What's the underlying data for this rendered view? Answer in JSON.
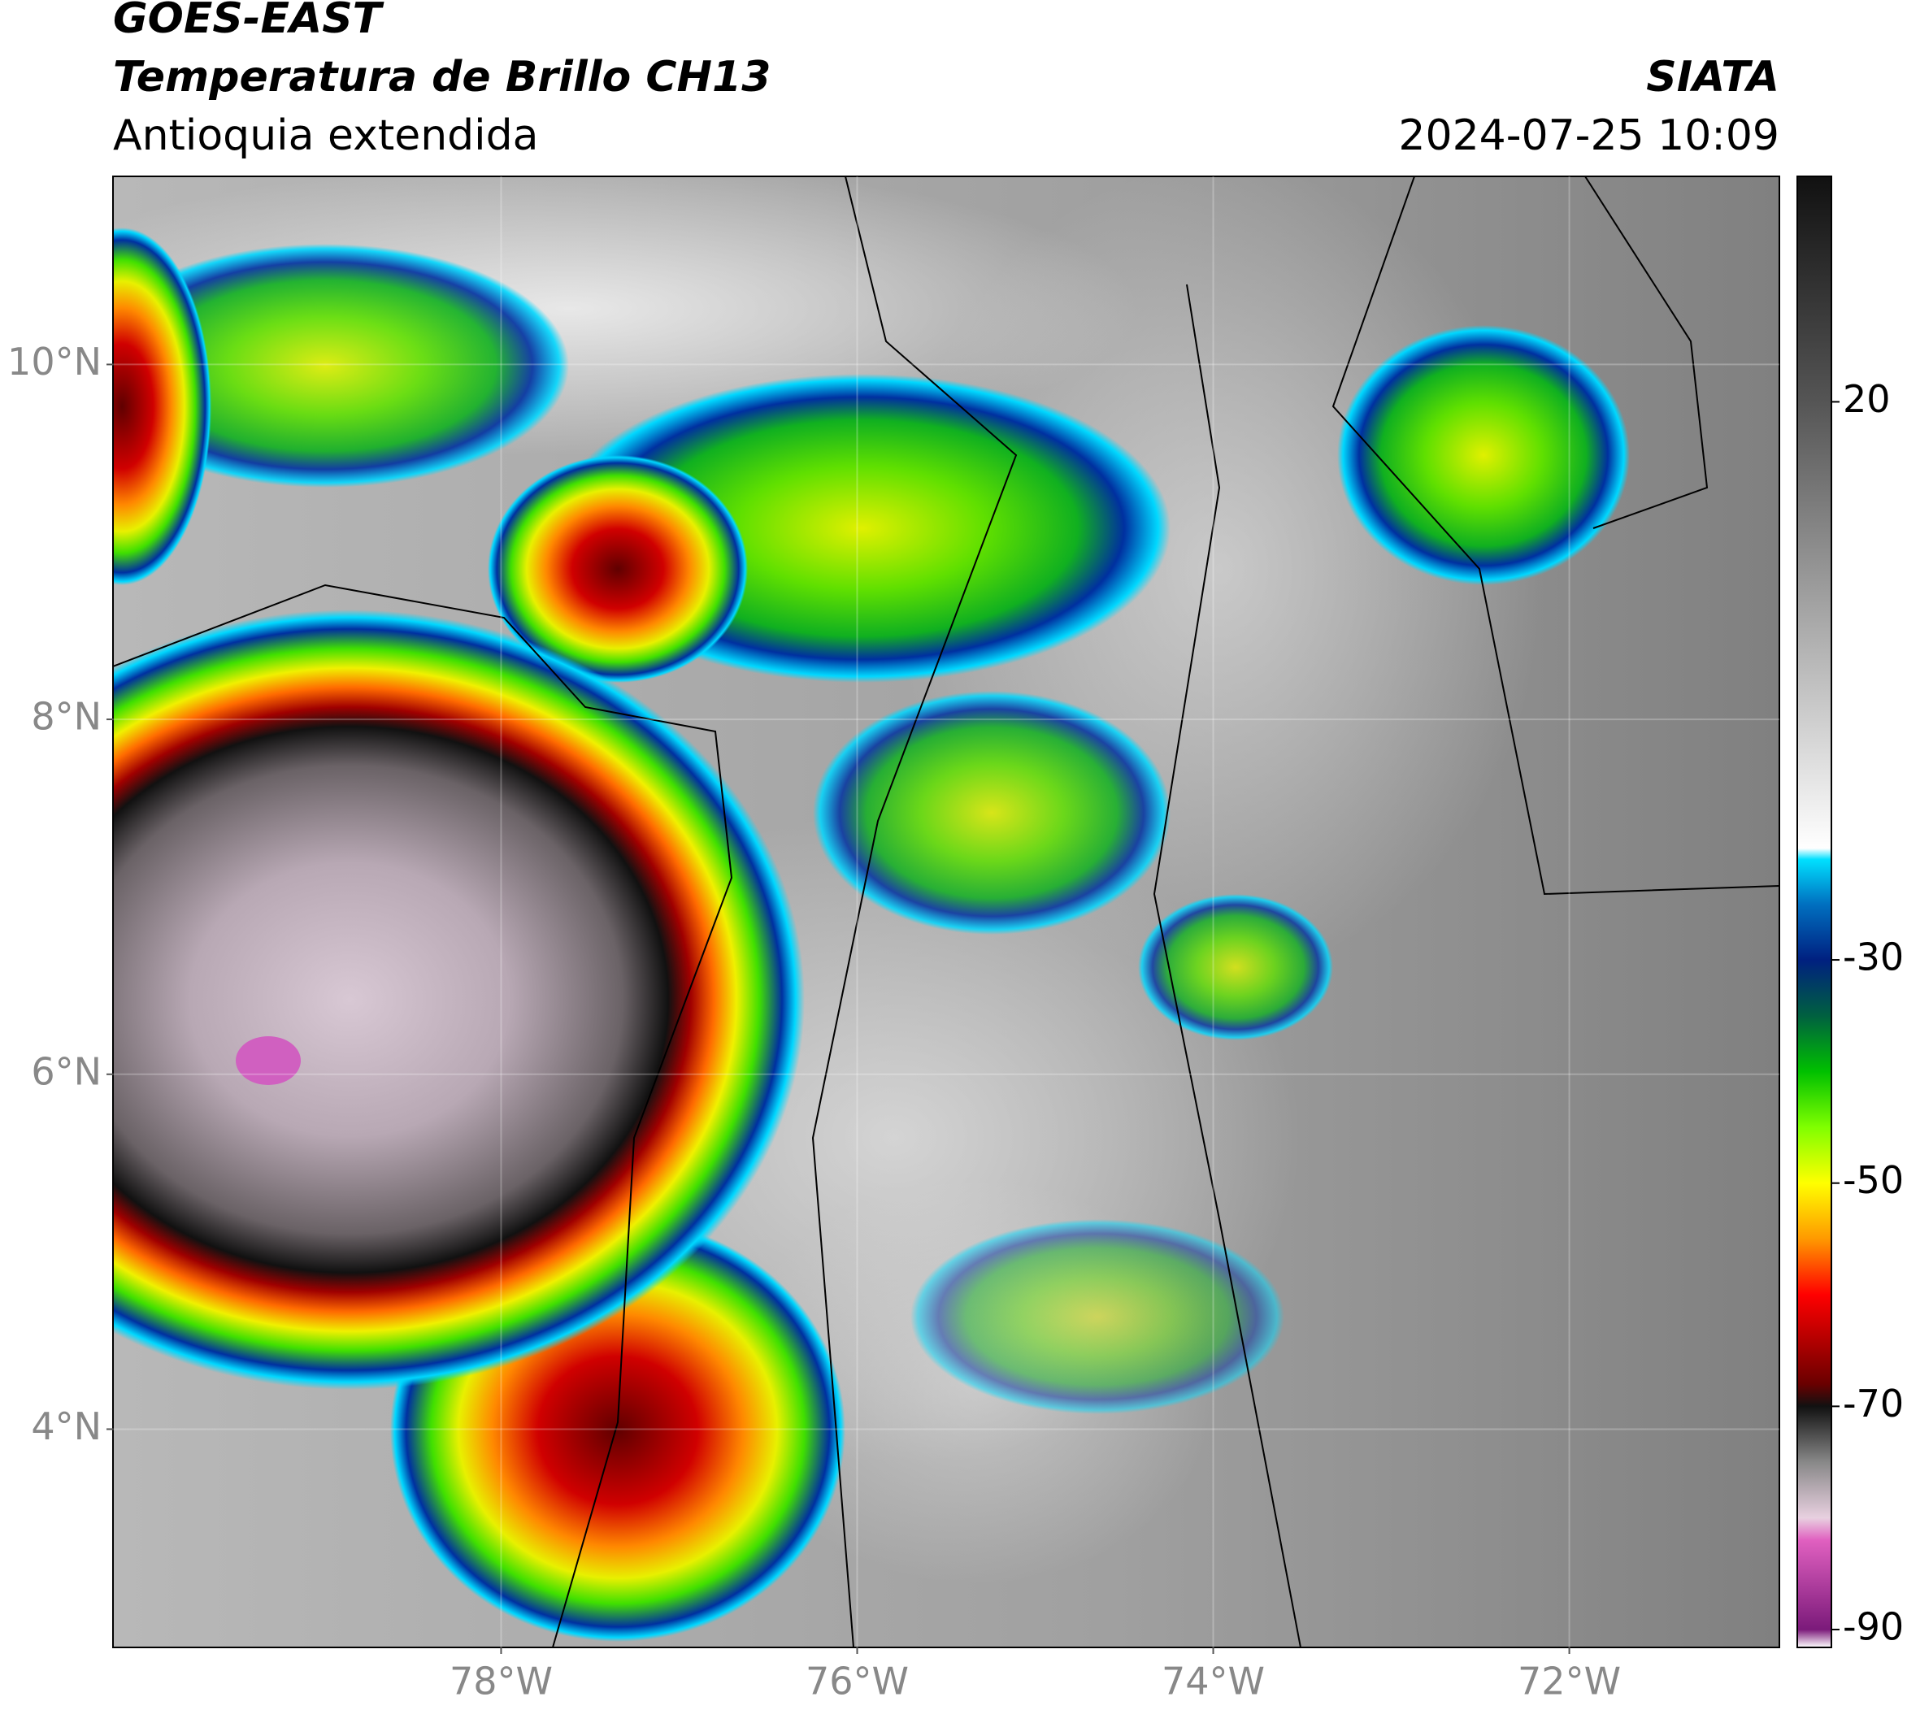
{
  "header": {
    "title": "GOES-EAST",
    "subtitle": "Temperatura de Brillo CH13",
    "region": "Antioquia extendida",
    "source": "SIATA",
    "datetime": "2024-07-25 10:09"
  },
  "map": {
    "xlim": [
      -80.18,
      -70.82
    ],
    "ylim": [
      2.77,
      11.06
    ],
    "xticks": [
      {
        "value": -78,
        "label": "78°W"
      },
      {
        "value": -76,
        "label": "76°W"
      },
      {
        "value": -74,
        "label": "74°W"
      },
      {
        "value": -72,
        "label": "72°W"
      }
    ],
    "yticks": [
      {
        "value": 4,
        "label": "4°N"
      },
      {
        "value": 6,
        "label": "6°N"
      },
      {
        "value": 8,
        "label": "8°N"
      },
      {
        "value": 10,
        "label": "10°N"
      }
    ],
    "grid": true
  },
  "colorbar": {
    "lim": [
      -91.6,
      40.2
    ],
    "ticks": [
      20,
      -30,
      -50,
      -70,
      -90
    ],
    "colormap": [
      {
        "value": -91.6,
        "color": "#ffffff"
      },
      {
        "value": -90,
        "color": "#7b1a7a"
      },
      {
        "value": -82,
        "color": "#e060c0"
      },
      {
        "value": -80,
        "color": "#e8d0e0"
      },
      {
        "value": -75,
        "color": "#888888"
      },
      {
        "value": -70,
        "color": "#111111"
      },
      {
        "value": -68,
        "color": "#6a0000"
      },
      {
        "value": -60,
        "color": "#ff0000"
      },
      {
        "value": -55,
        "color": "#ff9900"
      },
      {
        "value": -50,
        "color": "#ffff00"
      },
      {
        "value": -45,
        "color": "#80ff00"
      },
      {
        "value": -40,
        "color": "#00c000"
      },
      {
        "value": -35,
        "color": "#006040"
      },
      {
        "value": -30,
        "color": "#002080"
      },
      {
        "value": -25,
        "color": "#0070c0"
      },
      {
        "value": -21,
        "color": "#00e0ff"
      },
      {
        "value": -20,
        "color": "#ffffff"
      },
      {
        "value": 20,
        "color": "#555555"
      },
      {
        "value": 40.2,
        "color": "#111111"
      }
    ]
  }
}
